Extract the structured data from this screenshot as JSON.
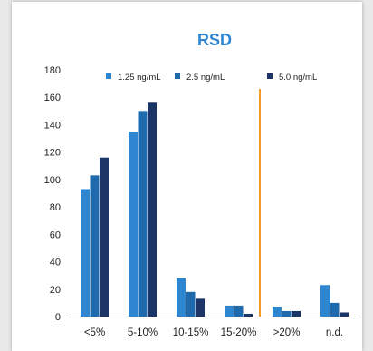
{
  "chart_data": {
    "type": "bar",
    "title": "RSD",
    "xlabel": "",
    "ylabel": "",
    "categories": [
      "<5%",
      "5-10%",
      "10-15%",
      "15-20%",
      ">20%",
      "n.d."
    ],
    "series": [
      {
        "name": "1.25 ng/mL",
        "color": "#2e86d1",
        "values": [
          93,
          135,
          28,
          8,
          7,
          23
        ]
      },
      {
        "name": "2.5 ng/mL",
        "color": "#1f6aad",
        "values": [
          103,
          150,
          18,
          8,
          4,
          10
        ]
      },
      {
        "name": "5.0 ng/mL",
        "color": "#1b3566",
        "values": [
          116,
          156,
          13,
          2,
          4,
          3
        ]
      }
    ],
    "ylim": [
      0,
      180
    ],
    "yticks": [
      0,
      20,
      40,
      60,
      80,
      100,
      120,
      140,
      160,
      180
    ],
    "grid": false,
    "legend": "top",
    "reference_line": {
      "between_categories": [
        "15-20%",
        ">20%"
      ],
      "color": "#f39a2b"
    },
    "title_color": "#2e86d1"
  }
}
